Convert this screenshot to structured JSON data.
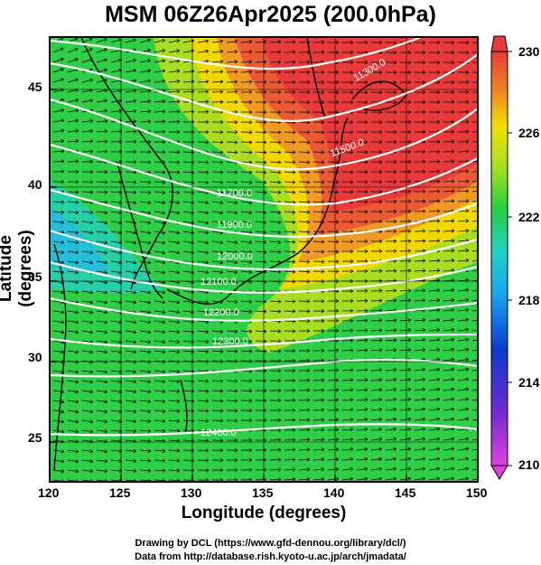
{
  "title": "MSM 06Z26Apr2025 (200.0hPa)",
  "xlabel": "Longitude (degrees)",
  "ylabel": "Latitude  (degrees)",
  "x_ticks": [
    "120",
    "125",
    "130",
    "135",
    "140",
    "145",
    "150"
  ],
  "y_ticks": [
    "25",
    "30",
    "35",
    "40",
    "45"
  ],
  "colorbar_ticks": [
    "230",
    "226",
    "222",
    "218",
    "214",
    "210"
  ],
  "contour_labels": [
    "11300.0",
    "11500.0",
    "11700.0",
    "11900.0",
    "12000.0",
    "12100.0",
    "12200.0",
    "12300.0",
    "12400.0"
  ],
  "credit_line1": "Drawing by DCL (https://www.gfd-dennou.org/library/dcl/)",
  "credit_line2": "Data from http://database.rish.kyoto-u.ac.jp/arch/jmadata/",
  "colors": {
    "cold": "#22c0e0",
    "mid": "#22d040",
    "warm": "#f0e000",
    "hot": "#e83a3a",
    "contour": "#ffffff",
    "vectors": "#000000"
  }
}
